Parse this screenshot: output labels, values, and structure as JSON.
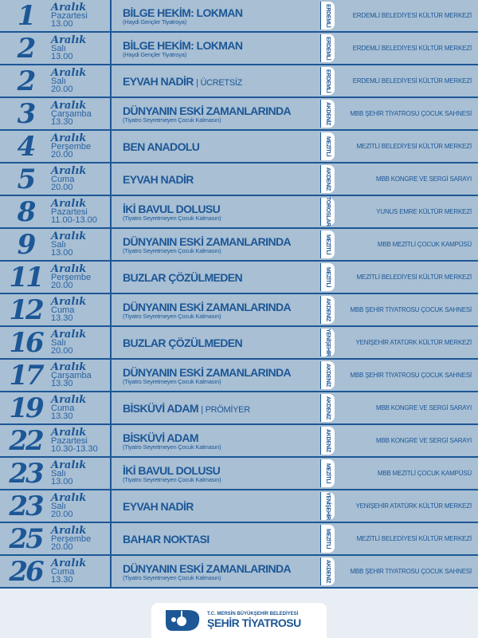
{
  "colors": {
    "primary": "#1d5796",
    "row_bg": "#a8bfd4",
    "tag_bg": "#ffffff"
  },
  "events": [
    {
      "day": "1",
      "month": "Aralık",
      "weekday": "Pazartesi",
      "time": "13.00",
      "title": "BİLGE HEKİM: LOKMAN",
      "extra": "",
      "subtitle": "(Haydi Gençler Tiyatroya)",
      "district": "ERDEMLİ",
      "venue": "ERDEMLİ BELEDİYESİ KÜLTÜR MERKEZİ"
    },
    {
      "day": "2",
      "month": "Aralık",
      "weekday": "Salı",
      "time": "13.00",
      "title": "BİLGE HEKİM: LOKMAN",
      "extra": "",
      "subtitle": "(Haydi Gençler Tiyatroya)",
      "district": "ERDEMLİ",
      "venue": "ERDEMLİ BELEDİYESİ KÜLTÜR MERKEZİ"
    },
    {
      "day": "2",
      "month": "Aralık",
      "weekday": "Salı",
      "time": "20.00",
      "title": "EYVAH NADİR",
      "extra": "| ÜCRETSİZ",
      "subtitle": "",
      "district": "ERDEMLİ",
      "venue": "ERDEMLİ BELEDİYESİ KÜLTÜR MERKEZİ"
    },
    {
      "day": "3",
      "month": "Aralık",
      "weekday": "Çarşamba",
      "time": "13.30",
      "title": "DÜNYANIN ESKİ ZAMANLARINDA",
      "extra": "",
      "subtitle": "(Tiyatro Seyretmeyen Çocuk Kalmasın)",
      "district": "AKDENİZ",
      "venue": "MBB ŞEHİR TİYATROSU ÇOCUK SAHNESİ"
    },
    {
      "day": "4",
      "month": "Aralık",
      "weekday": "Perşembe",
      "time": "20.00",
      "title": "BEN ANADOLU",
      "extra": "",
      "subtitle": "",
      "district": "MEZİTLİ",
      "venue": "MEZİTLİ BELEDİYESİ KÜLTÜR MERKEZİ"
    },
    {
      "day": "5",
      "month": "Aralık",
      "weekday": "Cuma",
      "time": "20.00",
      "title": "EYVAH NADİR",
      "extra": "",
      "subtitle": "",
      "district": "AKDENİZ",
      "venue": "MBB KONGRE VE SERGİ SARAYI"
    },
    {
      "day": "8",
      "month": "Aralık",
      "weekday": "Pazartesi",
      "time": "11.00-13.00",
      "title": "İKİ BAVUL DOLUSU",
      "extra": "",
      "subtitle": "(Tiyatro Seyretmeyen Çocuk Kalmasın)",
      "district": "TOROSLAR",
      "venue": "YUNUS EMRE KÜLTÜR MERKEZİ"
    },
    {
      "day": "9",
      "month": "Aralık",
      "weekday": "Salı",
      "time": "13.00",
      "title": "DÜNYANIN ESKİ ZAMANLARINDA",
      "extra": "",
      "subtitle": "(Tiyatro Seyretmeyen Çocuk Kalmasın)",
      "district": "MEZİTLİ",
      "venue": "MBB MEZİTLİ ÇOCUK KAMPÜSÜ"
    },
    {
      "day": "11",
      "month": "Aralık",
      "weekday": "Perşembe",
      "time": "20.00",
      "title": "BUZLAR ÇÖZÜLMEDEN",
      "extra": "",
      "subtitle": "",
      "district": "MEZİTLİ",
      "venue": "MEZİTLİ BELEDİYESİ KÜLTÜR MERKEZİ"
    },
    {
      "day": "12",
      "month": "Aralık",
      "weekday": "Cuma",
      "time": "13.30",
      "title": "DÜNYANIN ESKİ ZAMANLARINDA",
      "extra": "",
      "subtitle": "(Tiyatro Seyretmeyen Çocuk Kalmasın)",
      "district": "AKDENİZ",
      "venue": "MBB ŞEHİR TİYATROSU ÇOCUK SAHNESİ"
    },
    {
      "day": "16",
      "month": "Aralık",
      "weekday": "Salı",
      "time": "20.00",
      "title": "BUZLAR ÇÖZÜLMEDEN",
      "extra": "",
      "subtitle": "",
      "district": "YENİŞEHİR",
      "venue": "YENİŞEHİR ATATÜRK KÜLTÜR MERKEZİ"
    },
    {
      "day": "17",
      "month": "Aralık",
      "weekday": "Çarşamba",
      "time": "13.30",
      "title": "DÜNYANIN ESKİ ZAMANLARINDA",
      "extra": "",
      "subtitle": "(Tiyatro Seyretmeyen Çocuk Kalmasın)",
      "district": "AKDENİZ",
      "venue": "MBB ŞEHİR TİYATROSU ÇOCUK SAHNESİ"
    },
    {
      "day": "19",
      "month": "Aralık",
      "weekday": "Cuma",
      "time": "13.30",
      "title": "BİSKÜVİ ADAM",
      "extra": "| PRÖMİYER",
      "subtitle": "",
      "district": "AKDENİZ",
      "venue": "MBB KONGRE VE SERGİ SARAYI"
    },
    {
      "day": "22",
      "month": "Aralık",
      "weekday": "Pazartesi",
      "time": "10.30-13.30",
      "title": "BİSKÜVİ ADAM",
      "extra": "",
      "subtitle": "(Tiyatro Seyretmeyen Çocuk Kalmasın)",
      "district": "AKDENİZ",
      "venue": "MBB KONGRE VE SERGİ SARAYI"
    },
    {
      "day": "23",
      "month": "Aralık",
      "weekday": "Salı",
      "time": "13.00",
      "title": "İKİ BAVUL DOLUSU",
      "extra": "",
      "subtitle": "(Tiyatro Seyretmeyen Çocuk Kalmasın)",
      "district": "MEZİTLİ",
      "venue": "MBB MEZİTLİ ÇOCUK KAMPÜSÜ"
    },
    {
      "day": "23",
      "month": "Aralık",
      "weekday": "Salı",
      "time": "20.00",
      "title": "EYVAH NADİR",
      "extra": "",
      "subtitle": "",
      "district": "YENİŞEHİR",
      "venue": "YENİŞEHİR ATATÜRK KÜLTÜR MERKEZİ"
    },
    {
      "day": "25",
      "month": "Aralık",
      "weekday": "Perşembe",
      "time": "20.00",
      "title": "BAHAR NOKTASI",
      "extra": "",
      "subtitle": "",
      "district": "MEZİTLİ",
      "venue": "MEZİTLİ BELEDİYESİ KÜLTÜR MERKEZİ"
    },
    {
      "day": "26",
      "month": "Aralık",
      "weekday": "Cuma",
      "time": "13.30",
      "title": "DÜNYANIN ESKİ ZAMANLARINDA",
      "extra": "",
      "subtitle": "(Tiyatro Seyretmeyen Çocuk Kalmasın)",
      "district": "AKDENİZ",
      "venue": "MBB ŞEHİR TİYATROSU ÇOCUK SAHNESİ"
    }
  ],
  "logo": {
    "org": "T.C. MERSİN BÜYÜKŞEHİR BELEDİYESİ",
    "name": "ŞEHİR TİYATROSU",
    "icon": "theatre-mask-logo-icon"
  }
}
